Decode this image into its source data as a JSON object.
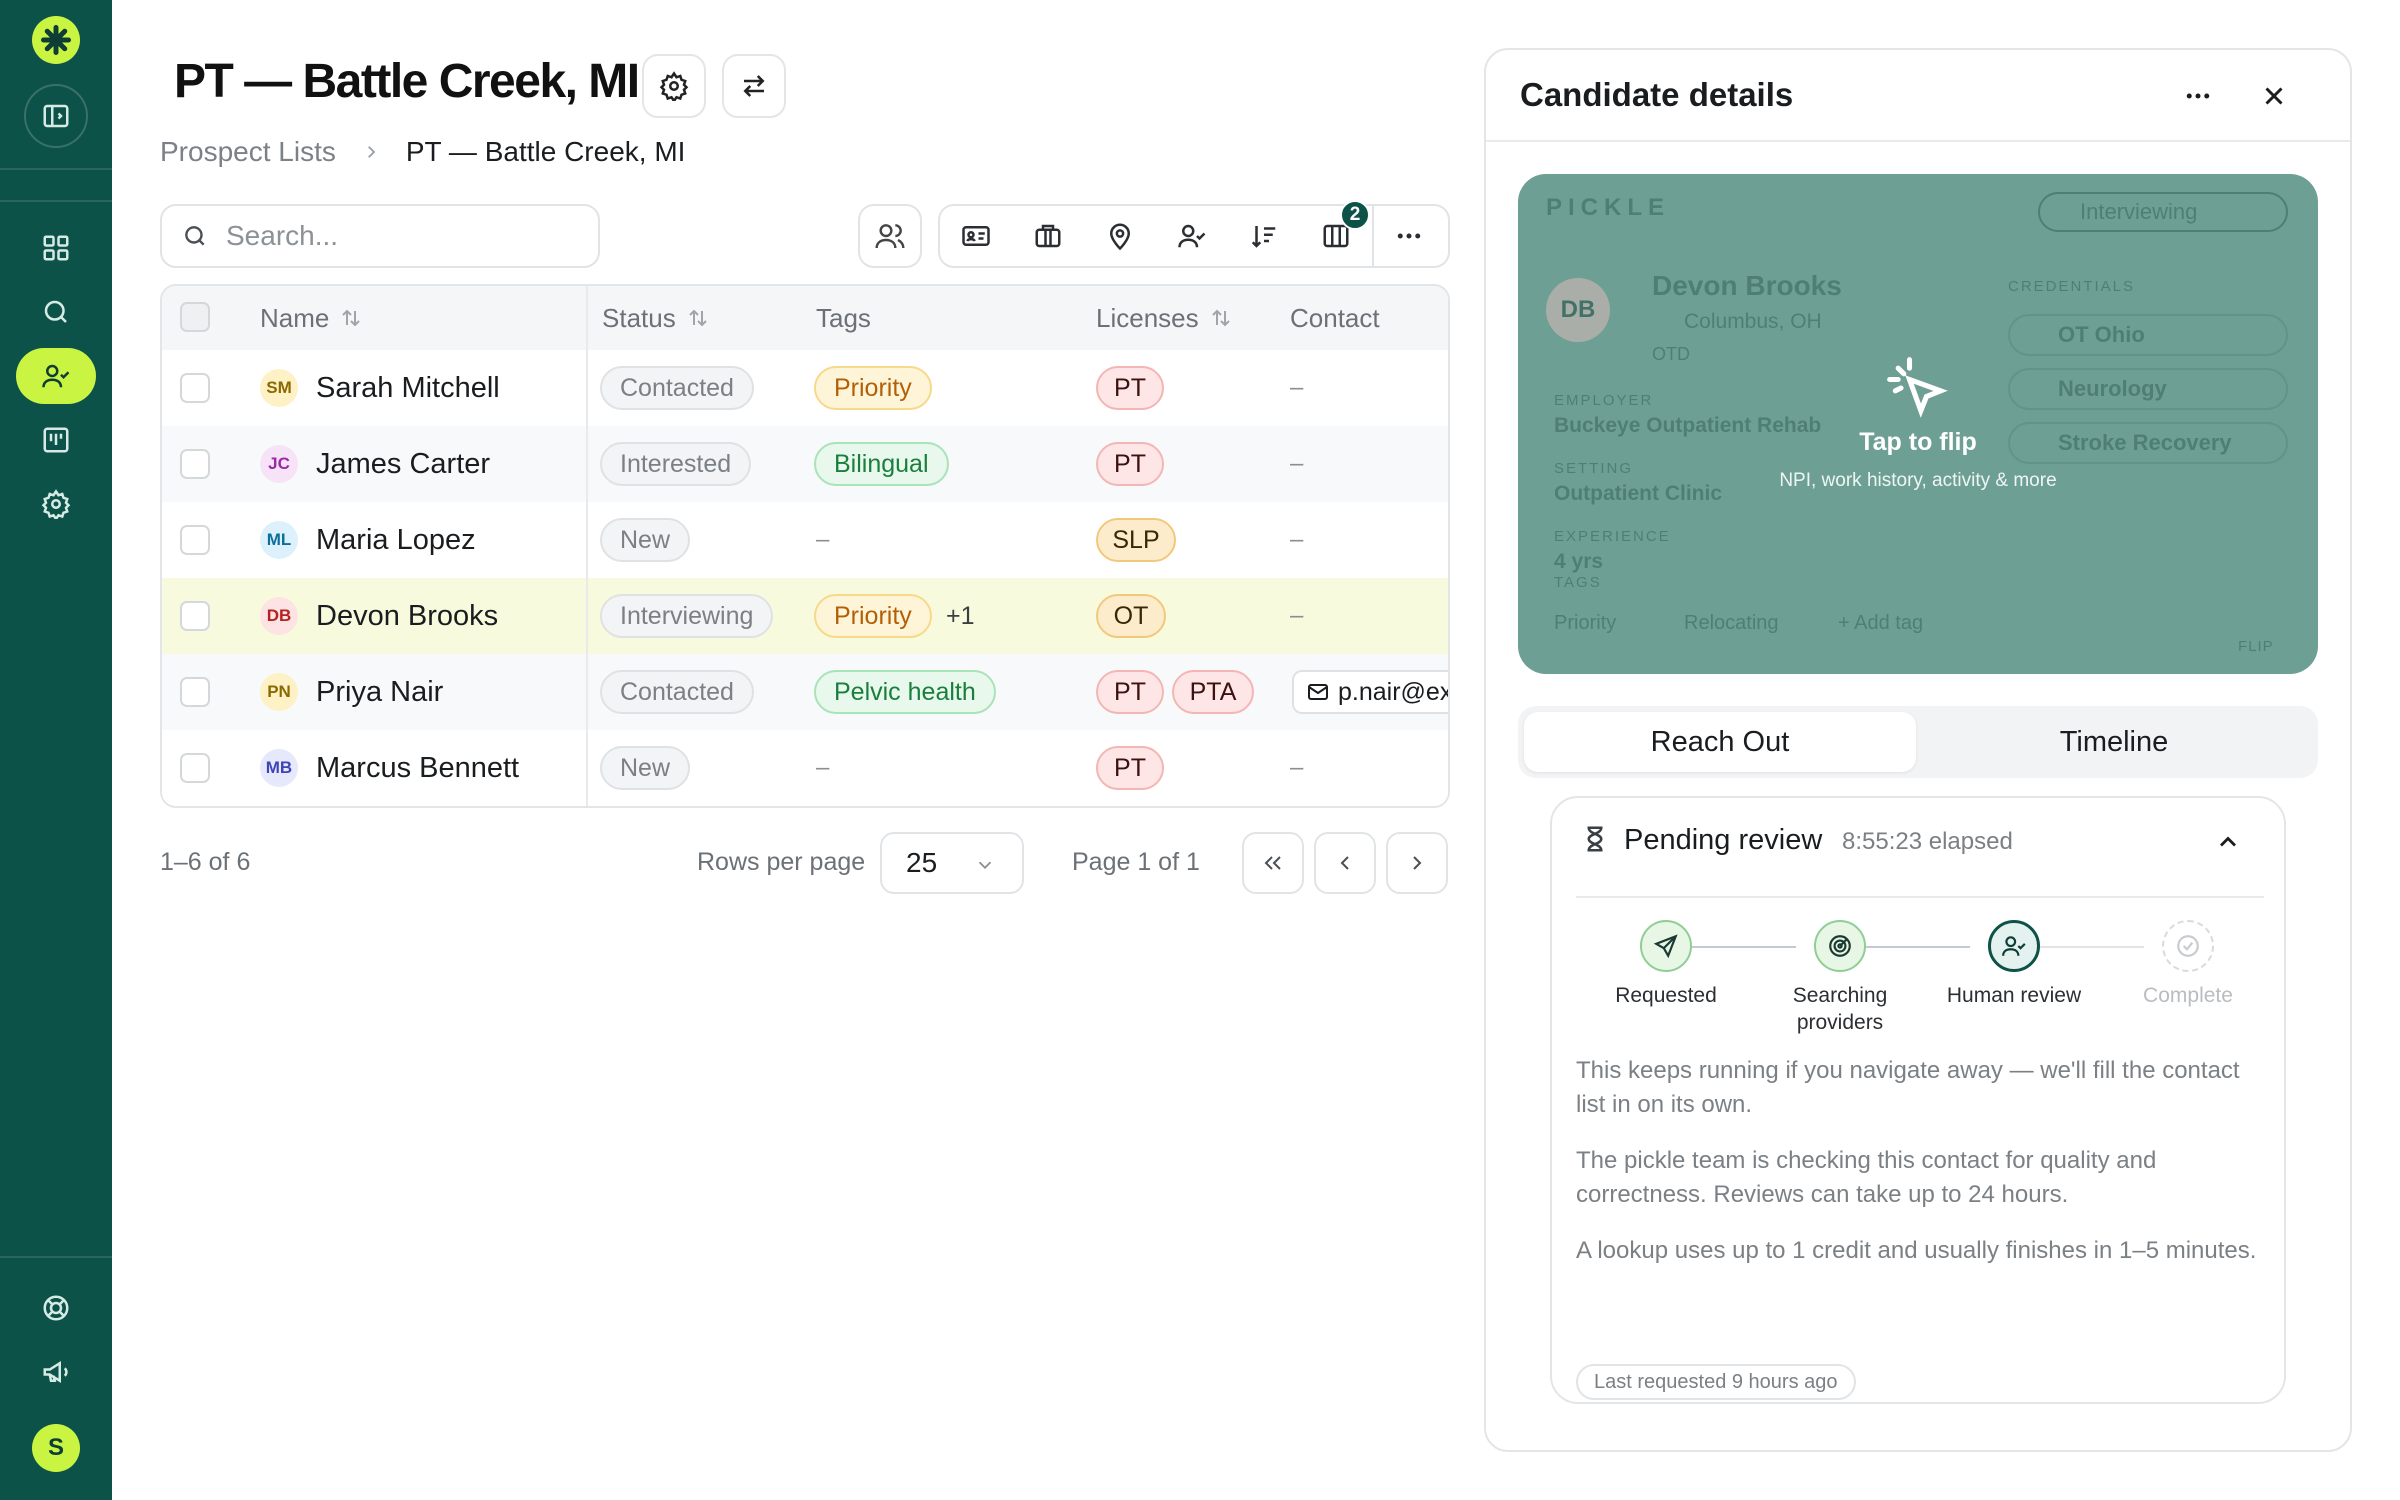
{
  "sidebar": {
    "logo_icon": "pickle-logo-icon",
    "collapse_icon": "panel-toggle-icon",
    "nav": [
      {
        "icon": "dashboard-grid-icon",
        "active": false
      },
      {
        "icon": "search-icon",
        "active": false
      },
      {
        "icon": "user-check-icon",
        "active": true
      },
      {
        "icon": "board-icon",
        "active": false
      },
      {
        "icon": "gear-icon",
        "active": false
      }
    ],
    "bottom": [
      {
        "icon": "lifebuoy-icon"
      },
      {
        "icon": "megaphone-icon"
      }
    ],
    "avatar_initial": "S"
  },
  "header": {
    "title": "PT — Battle Creek, MI",
    "breadcrumb": {
      "parent": "Prospect Lists",
      "current": "PT — Battle Creek, MI"
    }
  },
  "toolbar": {
    "search_placeholder": "Search...",
    "column_badge": "2"
  },
  "table": {
    "columns": {
      "name": "Name",
      "status": "Status",
      "tags": "Tags",
      "licenses": "Licenses",
      "contact": "Contact"
    },
    "rows": [
      {
        "initials": "SM",
        "name": "Sarah Mitchell",
        "status": "Contacted",
        "tags": [
          "Priority"
        ],
        "extra": "",
        "licenses": [
          "PT"
        ],
        "contact": "–"
      },
      {
        "initials": "JC",
        "name": "James Carter",
        "status": "Interested",
        "tags": [
          "Bilingual"
        ],
        "extra": "",
        "licenses": [
          "PT"
        ],
        "contact": "–"
      },
      {
        "initials": "ML",
        "name": "Maria Lopez",
        "status": "New",
        "tags": [],
        "tags_empty": "–",
        "extra": "",
        "licenses": [
          "SLP"
        ],
        "contact": "–"
      },
      {
        "initials": "DB",
        "name": "Devon Brooks",
        "status": "Interviewing",
        "tags": [
          "Priority"
        ],
        "extra": "+1",
        "licenses": [
          "OT"
        ],
        "contact": "–"
      },
      {
        "initials": "PN",
        "name": "Priya Nair",
        "status": "Contacted",
        "tags": [
          "Pelvic health"
        ],
        "extra": "",
        "licenses": [
          "PT",
          "PTA"
        ],
        "contact": "p.nair@ex"
      },
      {
        "initials": "MB",
        "name": "Marcus Bennett",
        "status": "New",
        "tags": [],
        "tags_empty": "–",
        "extra": "",
        "licenses": [
          "PT"
        ],
        "contact": "–"
      }
    ]
  },
  "pagination": {
    "range": "1–6 of 6",
    "rows_per_page_label": "Rows per page",
    "rows_per_page": "25",
    "page_info": "Page 1 of 1"
  },
  "panel": {
    "title": "Candidate details",
    "card": {
      "brand": "PICKLE",
      "status": "Interviewing",
      "initials": "DB",
      "name": "Devon Brooks",
      "location": "Columbus, OH",
      "degree": "OTD",
      "employer_label": "EMPLOYER",
      "employer": "Buckeye Outpatient Rehab",
      "setting_label": "SETTING",
      "setting": "Outpatient Clinic",
      "experience_label": "EXPERIENCE",
      "experience": "4 yrs",
      "tags_label": "TAGS",
      "credentials_label": "CREDENTIALS",
      "credentials": [
        "OT Ohio",
        "Neurology",
        "Stroke Recovery"
      ],
      "tags": [
        "Priority",
        "Relocating",
        "+ Add tag"
      ],
      "flip_corner": "FLIP",
      "flip_title": "Tap to flip",
      "flip_subtitle": "NPI, work history, activity & more"
    },
    "tabs": [
      "Reach Out",
      "Timeline"
    ],
    "review": {
      "title": "Pending review",
      "elapsed": "8:55:23 elapsed",
      "steps": [
        {
          "label": "Requested",
          "icon": "send-icon",
          "state": "done"
        },
        {
          "label": "Searching providers",
          "icon": "radar-icon",
          "state": "done"
        },
        {
          "label": "Human review",
          "icon": "user-check-icon",
          "state": "current"
        },
        {
          "label": "Complete",
          "icon": "check-circle-icon",
          "state": "pending"
        }
      ],
      "para1": "This keeps running if you navigate away — we'll fill the contact list in on its own.",
      "para2": "The pickle team is checking this contact for quality and correctness. Reviews can take up to 24 hours.",
      "para3": "A lookup uses up to 1 credit and usually finishes in 1–5 minutes.",
      "last_requested": "Last requested 9 hours ago"
    }
  },
  "colors": {
    "brand_dark": "#0d5248",
    "brand_lime": "#c9f542",
    "highlight_row": "#f7fadc"
  }
}
